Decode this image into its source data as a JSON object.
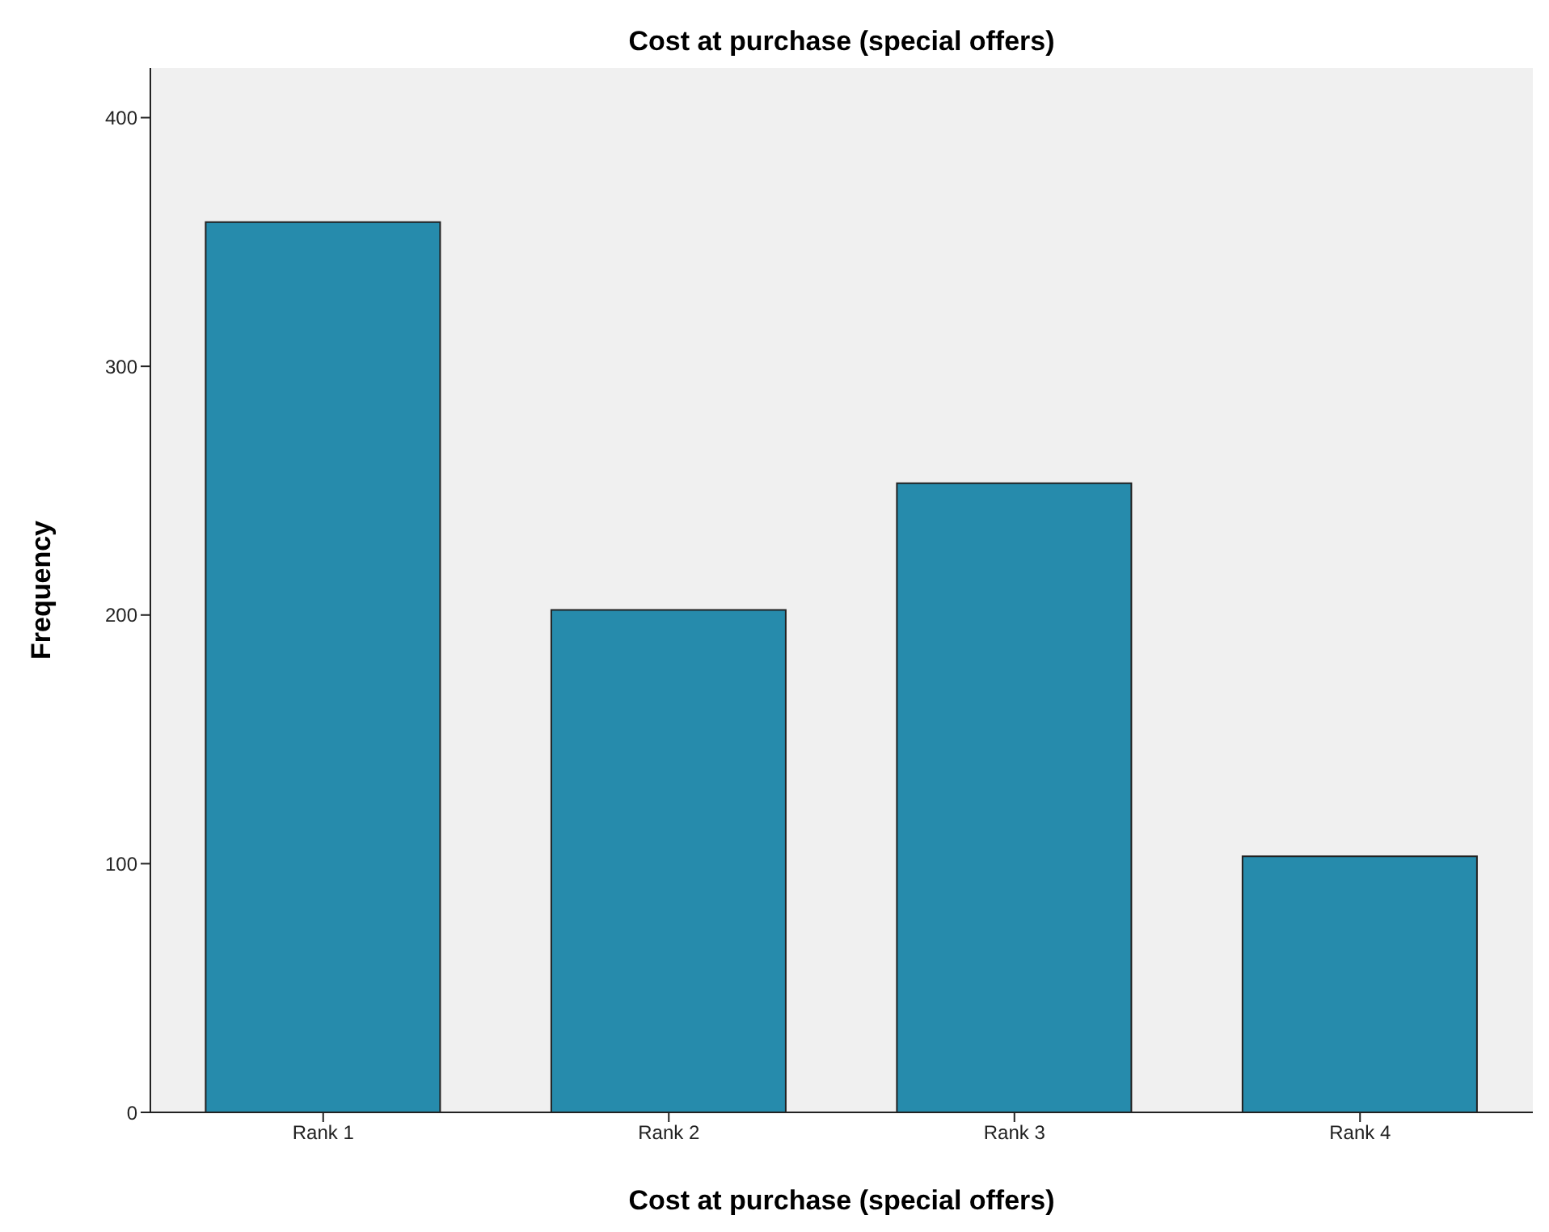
{
  "chart_data": {
    "type": "bar",
    "title": "Cost at purchase (special offers)",
    "xlabel": "Cost at purchase (special offers)",
    "ylabel": "Frequency",
    "categories": [
      "Rank 1",
      "Rank 2",
      "Rank 3",
      "Rank 4"
    ],
    "values": [
      358,
      202,
      253,
      103
    ],
    "color": "#268bac",
    "ylim": [
      0,
      420
    ],
    "yticks": [
      0,
      100,
      200,
      300,
      400
    ],
    "grid": false
  }
}
